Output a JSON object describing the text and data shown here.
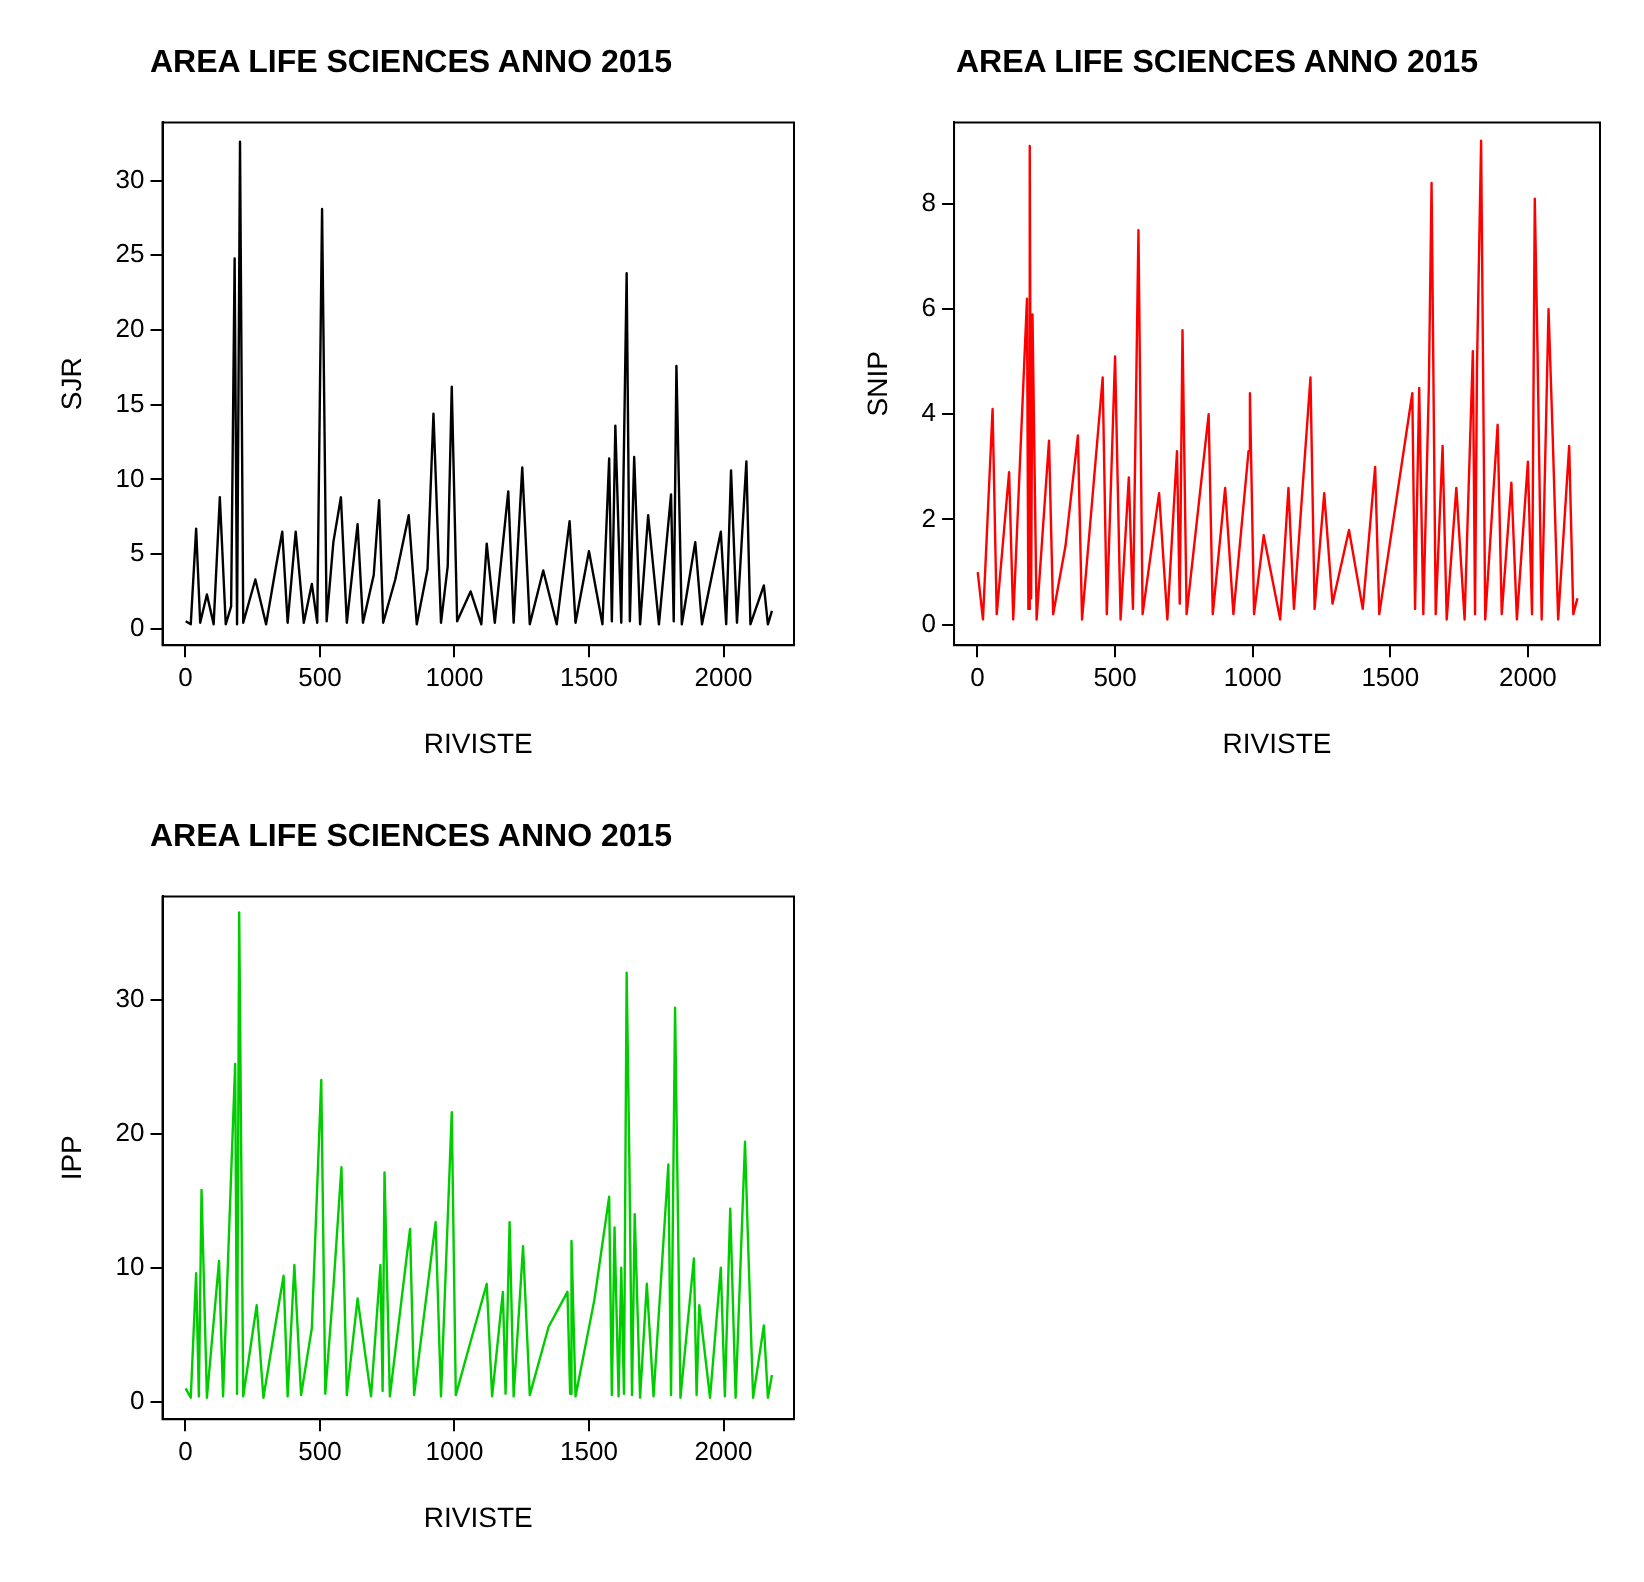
{
  "chart_data": [
    {
      "type": "line",
      "title": "AREA LIFE SCIENCES ANNO 2015",
      "xlabel": "RIVISTE",
      "ylabel": "SJR",
      "xlim": [
        -85,
        2262
      ],
      "xticks": [
        0,
        500,
        1000,
        1500,
        2000
      ],
      "ylim": [
        -1.1,
        33.9
      ],
      "yticks": [
        0,
        5,
        10,
        15,
        20,
        25,
        30
      ],
      "grid": false,
      "series": [
        {
          "color": "#000000",
          "x": [
            1,
            20,
            40,
            55,
            80,
            105,
            128,
            150,
            170,
            183,
            192,
            203,
            215,
            260,
            300,
            340,
            360,
            380,
            410,
            440,
            470,
            490,
            508,
            525,
            550,
            578,
            600,
            640,
            660,
            700,
            720,
            735,
            780,
            830,
            860,
            900,
            922,
            950,
            975,
            990,
            1010,
            1060,
            1100,
            1120,
            1150,
            1200,
            1220,
            1252,
            1280,
            1330,
            1380,
            1428,
            1450,
            1500,
            1550,
            1575,
            1585,
            1598,
            1620,
            1640,
            1652,
            1668,
            1690,
            1720,
            1760,
            1805,
            1815,
            1825,
            1845,
            1895,
            1920,
            1990,
            2010,
            2028,
            2050,
            2085,
            2100,
            2150,
            2165,
            2180
          ],
          "values": [
            0.5,
            0.3,
            6.7,
            0.4,
            2.3,
            0.3,
            8.8,
            0.3,
            1.5,
            24.8,
            0.3,
            32.6,
            0.4,
            3.3,
            0.3,
            4.5,
            6.5,
            0.4,
            6.5,
            0.4,
            3,
            0.4,
            28.1,
            0.5,
            5.8,
            8.8,
            0.4,
            7.0,
            0.4,
            3.6,
            8.6,
            0.4,
            3.3,
            7.6,
            0.3,
            4,
            14.4,
            0.4,
            4.2,
            16.2,
            0.5,
            2.5,
            0.3,
            5.7,
            0.4,
            9.2,
            0.4,
            10.8,
            0.3,
            3.9,
            0.3,
            7.2,
            0.4,
            5.2,
            0.3,
            11.4,
            0.5,
            13.6,
            0.4,
            23.8,
            0.5,
            11.5,
            0.3,
            7.6,
            0.3,
            9.0,
            0.5,
            17.6,
            0.3,
            5.8,
            0.3,
            6.5,
            0.3,
            10.6,
            0.4,
            11.2,
            0.3,
            2.9,
            0.3,
            1.2
          ]
        }
      ]
    },
    {
      "type": "line",
      "title": "AREA LIFE SCIENCES ANNO 2015",
      "xlabel": "RIVISTE",
      "ylabel": "SNIP",
      "xlim": [
        -85,
        2262
      ],
      "xticks": [
        0,
        500,
        1000,
        1500,
        2000
      ],
      "ylim": [
        -0.39,
        9.55
      ],
      "yticks": [
        0,
        2,
        4,
        6,
        8
      ],
      "grid": false,
      "series": [
        {
          "color": "#ff0000",
          "x": [
            1,
            20,
            55,
            70,
            115,
            130,
            180,
            185,
            190,
            195,
            200,
            215,
            260,
            275,
            320,
            365,
            380,
            455,
            470,
            500,
            520,
            550,
            565,
            585,
            600,
            660,
            690,
            725,
            735,
            745,
            760,
            840,
            855,
            900,
            930,
            985,
            990,
            1005,
            1040,
            1100,
            1130,
            1150,
            1210,
            1225,
            1260,
            1290,
            1350,
            1400,
            1445,
            1460,
            1580,
            1590,
            1605,
            1620,
            1640,
            1650,
            1665,
            1690,
            1705,
            1740,
            1770,
            1800,
            1808,
            1815,
            1830,
            1845,
            1890,
            1905,
            1940,
            1960,
            2000,
            2015,
            2025,
            2035,
            2050,
            2075,
            2090,
            2110,
            2150,
            2165,
            2180
          ],
          "values": [
            1.0,
            0.1,
            4.1,
            0.2,
            2.9,
            0.1,
            6.2,
            0.3,
            9.1,
            0.5,
            5.9,
            0.1,
            3.5,
            0.2,
            1.5,
            3.6,
            0.1,
            4.7,
            0.2,
            5.1,
            0.1,
            2.8,
            0.3,
            7.5,
            0.2,
            2.5,
            0.1,
            3.3,
            0.4,
            5.6,
            0.2,
            4.0,
            0.2,
            2.6,
            0.2,
            3.3,
            4.4,
            0.2,
            1.7,
            0.1,
            2.6,
            0.3,
            4.7,
            0.3,
            2.5,
            0.4,
            1.8,
            0.3,
            3.0,
            0.2,
            4.4,
            0.3,
            4.5,
            0.2,
            4.5,
            8.4,
            0.2,
            3.4,
            0.1,
            2.6,
            0.1,
            5.2,
            0.2,
            4.9,
            9.2,
            0.1,
            3.8,
            0.2,
            2.7,
            0.1,
            3.1,
            0.2,
            8.1,
            5.2,
            0.1,
            6.0,
            3.6,
            0.1,
            3.4,
            0.2,
            0.5
          ]
        }
      ]
    },
    {
      "type": "line",
      "title": "AREA LIFE SCIENCES ANNO 2015",
      "xlabel": "RIVISTE",
      "ylabel": "IPP",
      "xlim": [
        -85,
        2262
      ],
      "xticks": [
        0,
        500,
        1000,
        1500,
        2000
      ],
      "ylim": [
        -1.3,
        37.7
      ],
      "yticks": [
        0,
        10,
        20,
        30
      ],
      "grid": false,
      "series": [
        {
          "color": "#00cd00",
          "x": [
            1,
            20,
            40,
            50,
            60,
            80,
            125,
            140,
            185,
            192,
            200,
            215,
            265,
            290,
            330,
            365,
            380,
            405,
            430,
            470,
            505,
            520,
            550,
            580,
            600,
            640,
            690,
            725,
            733,
            740,
            760,
            835,
            850,
            930,
            950,
            990,
            1005,
            1060,
            1120,
            1140,
            1180,
            1190,
            1205,
            1220,
            1255,
            1280,
            1350,
            1420,
            1430,
            1435,
            1450,
            1520,
            1575,
            1585,
            1595,
            1610,
            1620,
            1630,
            1640,
            1650,
            1660,
            1670,
            1690,
            1715,
            1740,
            1795,
            1805,
            1820,
            1840,
            1890,
            1900,
            1910,
            1950,
            1990,
            2005,
            2025,
            2045,
            2080,
            2090,
            2110,
            2150,
            2165,
            2180
          ],
          "values": [
            1.0,
            0.3,
            9.6,
            0.4,
            15.8,
            0.3,
            10.5,
            0.4,
            25.2,
            0.6,
            36.5,
            0.4,
            7.2,
            0.3,
            5.2,
            9.4,
            0.4,
            10.2,
            0.5,
            5.5,
            24.0,
            0.6,
            8.5,
            17.5,
            0.5,
            7.7,
            0.4,
            10.2,
            0.8,
            17.1,
            0.4,
            12.9,
            0.5,
            13.4,
            0.4,
            21.6,
            0.5,
            4.5,
            8.8,
            0.4,
            8.2,
            0.6,
            13.4,
            0.4,
            11.6,
            0.5,
            5.6,
            8.2,
            0.6,
            12.0,
            0.4,
            7.6,
            15.3,
            0.5,
            13.0,
            0.4,
            10.0,
            0.6,
            32.0,
            18.1,
            0.5,
            14.0,
            0.3,
            8.8,
            0.4,
            17.7,
            0.5,
            29.4,
            0.3,
            10.7,
            0.5,
            7.2,
            0.3,
            10.0,
            0.4,
            14.4,
            0.3,
            19.4,
            12.7,
            0.3,
            5.7,
            0.3,
            2.0
          ]
        }
      ]
    }
  ]
}
